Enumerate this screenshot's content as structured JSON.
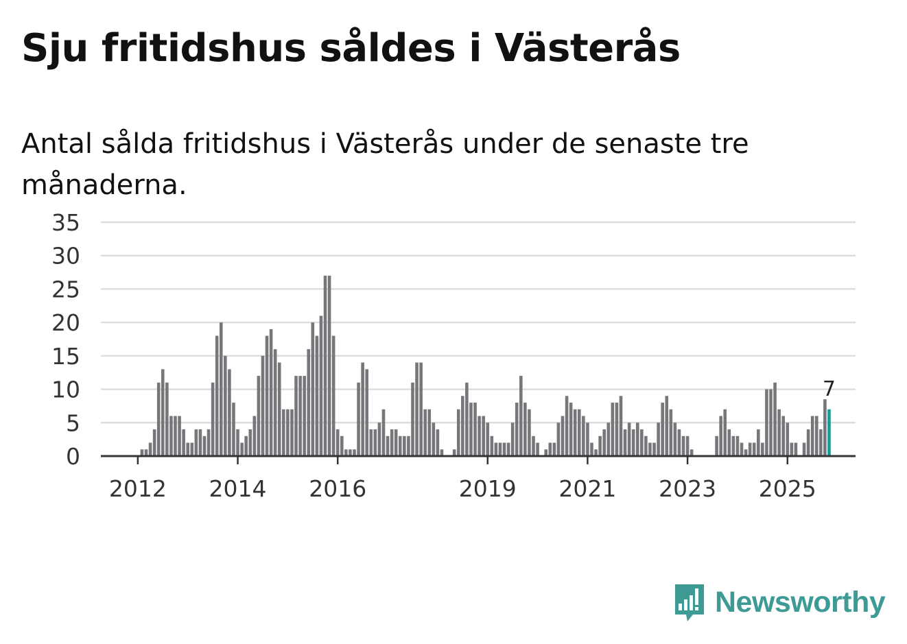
{
  "title": "Sju fritidshus såldes i Västerås",
  "subtitle": "Antal sålda fritidshus i Västerås under de senaste tre månaderna.",
  "brand": {
    "name": "Newsworthy",
    "color": "#3d9a94",
    "icon": "newsworthy-chart-bubble-icon"
  },
  "colors": {
    "bar": "#77767a",
    "highlight": "#1a9a94",
    "grid": "#dddddd",
    "axis": "#333333"
  },
  "chart_data": {
    "type": "bar",
    "title": "Sju fritidshus såldes i Västerås",
    "xlabel": "",
    "ylabel": "",
    "ylim": [
      0,
      35
    ],
    "yticks": [
      0,
      5,
      10,
      15,
      20,
      25,
      30,
      35
    ],
    "xticks": [
      {
        "label": "2012",
        "index": 8
      },
      {
        "label": "2014",
        "index": 32
      },
      {
        "label": "2016",
        "index": 56
      },
      {
        "label": "2019",
        "index": 92
      },
      {
        "label": "2021",
        "index": 116
      },
      {
        "label": "2023",
        "index": 140
      },
      {
        "label": "2025",
        "index": 164
      }
    ],
    "series": [
      {
        "name": "Antal sålda fritidshus (senaste tre månaderna)",
        "values": [
          0,
          0,
          0,
          0,
          0,
          0,
          0,
          0,
          0,
          1,
          1,
          2,
          4,
          11,
          13,
          11,
          6,
          6,
          6,
          4,
          2,
          2,
          4,
          4,
          3,
          4,
          11,
          18,
          20,
          15,
          13,
          8,
          4,
          2,
          3,
          4,
          6,
          12,
          15,
          18,
          19,
          16,
          14,
          7,
          7,
          7,
          12,
          12,
          12,
          16,
          20,
          18,
          21,
          27,
          27,
          18,
          4,
          3,
          1,
          1,
          1,
          11,
          14,
          13,
          4,
          4,
          5,
          7,
          3,
          4,
          4,
          3,
          3,
          3,
          11,
          14,
          14,
          7,
          7,
          5,
          4,
          1,
          0,
          0,
          1,
          7,
          9,
          11,
          8,
          8,
          6,
          6,
          5,
          3,
          2,
          2,
          2,
          2,
          5,
          8,
          12,
          8,
          7,
          3,
          2,
          0,
          1,
          2,
          2,
          5,
          6,
          9,
          8,
          7,
          7,
          6,
          5,
          2,
          1,
          3,
          4,
          5,
          8,
          8,
          9,
          4,
          5,
          4,
          5,
          4,
          3,
          2,
          2,
          5,
          8,
          9,
          7,
          5,
          4,
          3,
          3,
          1,
          0,
          0,
          0,
          0,
          0,
          3,
          6,
          7,
          4,
          3,
          3,
          2,
          1,
          2,
          2,
          4,
          2,
          10,
          10,
          11,
          7,
          6,
          5,
          2,
          2,
          0,
          2,
          4,
          6,
          6,
          4,
          8.5,
          7
        ]
      }
    ],
    "last_value_label": "7"
  }
}
